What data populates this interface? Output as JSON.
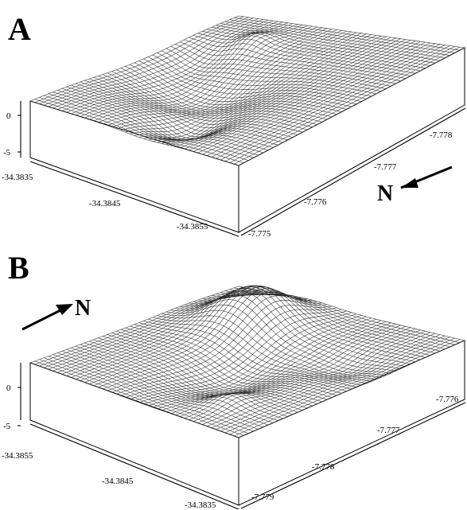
{
  "panels": [
    {
      "letter": "A",
      "z_ticks": [
        "0",
        "-5"
      ],
      "lon_ticks": [
        "-34.3835",
        "-34.3845",
        "-34.3855"
      ],
      "lat_ticks": [
        "-7.778",
        "-7.777",
        "-7.776",
        "-7.775"
      ],
      "north_label": "N"
    },
    {
      "letter": "B",
      "z_ticks": [
        "0",
        "-5"
      ],
      "lon_ticks": [
        "-34.3855",
        "-34.3845",
        "-34.3835"
      ],
      "lat_ticks": [
        "-7.776",
        "-7.777",
        "-7.778",
        "-7.779"
      ],
      "north_label": "N"
    }
  ]
}
